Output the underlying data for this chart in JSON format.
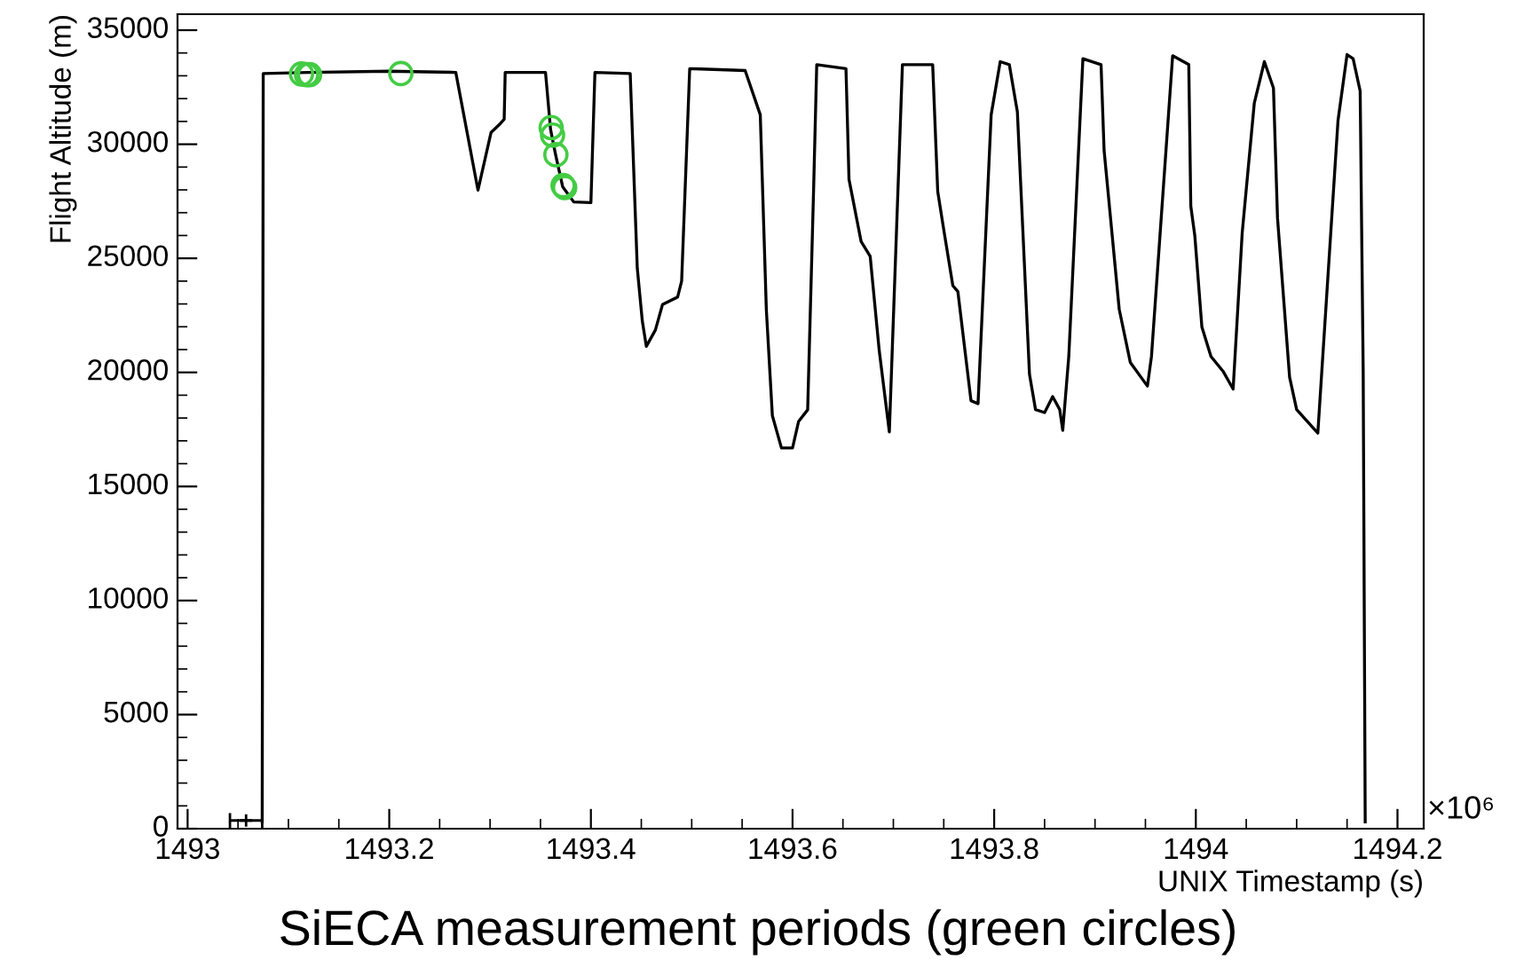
{
  "chart_data": {
    "type": "line",
    "title": "SiECA measurement periods (green circles)",
    "xlabel": "UNIX Timestamp (s)",
    "ylabel": "Flight Altitude (m)",
    "annotations": [
      "×10⁶"
    ],
    "xlim": [
      1492.99,
      1494.226
    ],
    "ylim": [
      0,
      35700
    ],
    "xticks": [
      1493,
      1493.2,
      1493.4,
      1493.6,
      1493.8,
      1494,
      1494.2
    ],
    "yticks": [
      0,
      5000,
      10000,
      15000,
      20000,
      25000,
      30000,
      35000
    ],
    "grid": false,
    "series": [
      {
        "color": "#000000",
        "line_style": "solid",
        "marker": "none",
        "x": [
          1493.074,
          1493.075,
          1493.12,
          1493.2,
          1493.266,
          1493.288,
          1493.301,
          1493.31,
          1493.314,
          1493.315,
          1493.355,
          1493.36,
          1493.365,
          1493.372,
          1493.383,
          1493.4,
          1493.404,
          1493.439,
          1493.446,
          1493.451,
          1493.455,
          1493.464,
          1493.471,
          1493.486,
          1493.49,
          1493.498,
          1493.509,
          1493.553,
          1493.568,
          1493.574,
          1493.58,
          1493.589,
          1493.6,
          1493.606,
          1493.615,
          1493.621,
          1493.624,
          1493.653,
          1493.656,
          1493.668,
          1493.677,
          1493.686,
          1493.696,
          1493.709,
          1493.739,
          1493.744,
          1493.75,
          1493.759,
          1493.764,
          1493.777,
          1493.784,
          1493.797,
          1493.806,
          1493.815,
          1493.823,
          1493.835,
          1493.841,
          1493.85,
          1493.858,
          1493.865,
          1493.868,
          1493.874,
          1493.888,
          1493.906,
          1493.909,
          1493.924,
          1493.935,
          1493.952,
          1493.956,
          1493.977,
          1493.993,
          1493.995,
          1493.999,
          1494.006,
          1494.015,
          1494.027,
          1494.037,
          1494.046,
          1494.058,
          1494.068,
          1494.077,
          1494.081,
          1494.093,
          1494.1,
          1494.121,
          1494.141,
          1494.15,
          1494.156,
          1494.163,
          1494.166,
          1494.168
        ],
        "values": [
          300,
          33100,
          33150,
          33200,
          33150,
          27990,
          30520,
          30900,
          31100,
          33150,
          33150,
          30650,
          29540,
          28140,
          27470,
          27440,
          33150,
          33100,
          24570,
          22250,
          21140,
          21860,
          22970,
          23300,
          24000,
          33310,
          33300,
          33230,
          31290,
          22770,
          18100,
          16690,
          16690,
          17850,
          18360,
          28190,
          33490,
          33310,
          28460,
          25740,
          25090,
          20950,
          17390,
          33490,
          33490,
          27930,
          26250,
          23800,
          23540,
          18760,
          18630,
          31290,
          33620,
          33490,
          31420,
          19920,
          18370,
          18240,
          18940,
          18370,
          17460,
          20700,
          33750,
          33490,
          29740,
          22770,
          20440,
          19400,
          20700,
          33880,
          33490,
          27290,
          25990,
          21990,
          20700,
          20050,
          19270,
          26120,
          31810,
          33620,
          32460,
          26770,
          19790,
          18370,
          17340,
          31030,
          33930,
          33750,
          32330,
          20000,
          300
        ]
      },
      {
        "type": "scatter",
        "color": "#000000",
        "marker": "cross",
        "x": [
          1493.058
        ],
        "values": [
          360
        ],
        "xerrors": [
          0.016
        ]
      },
      {
        "type": "scatter",
        "color": "#44cc44",
        "marker": "circle",
        "x": [
          1493.113,
          1493.118,
          1493.121,
          1493.2115,
          1493.3606,
          1493.362,
          1493.3653,
          1493.3724,
          1493.374
        ],
        "values": [
          33080,
          33050,
          33050,
          33100,
          30730,
          30400,
          29540,
          28190,
          28100
        ]
      }
    ]
  }
}
